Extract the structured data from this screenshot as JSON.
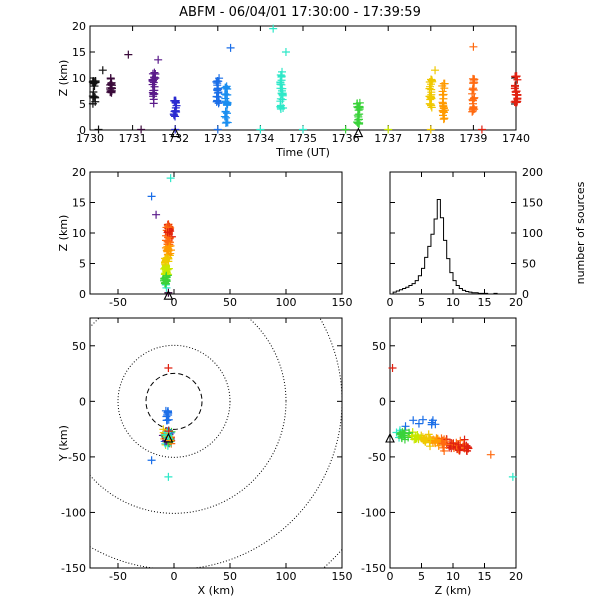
{
  "chart_data": [
    {
      "type": "scatter",
      "panel": "altitude-time",
      "title": "ABFM - 06/04/01 17:30:00 - 17:39:59",
      "xlabel": "Time (UT)",
      "ylabel": "Z (km)",
      "xlim": [
        1730,
        1740
      ],
      "ylim": [
        0,
        20
      ],
      "xticks": [
        "1730",
        "1731",
        "1732",
        "1733",
        "1734",
        "1735",
        "1736",
        "1737",
        "1738",
        "1739",
        "1740"
      ],
      "yticks": [
        "0",
        "5",
        "10",
        "15",
        "20"
      ],
      "clusters": [
        {
          "t": 1730.1,
          "z_min": 5.0,
          "z_max": 9.5,
          "color": "#111111"
        },
        {
          "t": 1730.5,
          "z_min": 7.0,
          "z_max": 10.0,
          "color": "#3a0a3a"
        },
        {
          "t": 1731.5,
          "z_min": 5.0,
          "z_max": 11.5,
          "color": "#5a1a8a"
        },
        {
          "t": 1732.0,
          "z_min": 2.5,
          "z_max": 6.0,
          "color": "#2a2ad0"
        },
        {
          "t": 1733.0,
          "z_min": 5.0,
          "z_max": 10.0,
          "color": "#1a6ee8"
        },
        {
          "t": 1733.2,
          "z_min": 1.0,
          "z_max": 9.0,
          "color": "#1a8ef0"
        },
        {
          "t": 1734.5,
          "z_min": 4.0,
          "z_max": 11.5,
          "color": "#2ee8c8"
        },
        {
          "t": 1736.3,
          "z_min": 1.0,
          "z_max": 5.5,
          "color": "#3ad23a"
        },
        {
          "t": 1738.0,
          "z_min": 4.0,
          "z_max": 10.0,
          "color": "#f0c800"
        },
        {
          "t": 1738.3,
          "z_min": 2.0,
          "z_max": 9.0,
          "color": "#ff9a00"
        },
        {
          "t": 1739.0,
          "z_min": 3.5,
          "z_max": 10.0,
          "color": "#ff6a10"
        },
        {
          "t": 1740.0,
          "z_min": 5.0,
          "z_max": 10.5,
          "color": "#e02010"
        }
      ],
      "outliers": [
        {
          "t": 1730.3,
          "z": 11.5,
          "color": "#111111"
        },
        {
          "t": 1730.9,
          "z": 14.5,
          "color": "#3a0a3a"
        },
        {
          "t": 1731.6,
          "z": 13.5,
          "color": "#5a1a8a"
        },
        {
          "t": 1733.3,
          "z": 15.8,
          "color": "#1a6ee8"
        },
        {
          "t": 1734.3,
          "z": 19.5,
          "color": "#2ee8c8"
        },
        {
          "t": 1734.6,
          "z": 15.0,
          "color": "#2ee8c8"
        },
        {
          "t": 1739.0,
          "z": 16.0,
          "color": "#ff6a10"
        },
        {
          "t": 1738.1,
          "z": 11.5,
          "color": "#f0c800"
        }
      ],
      "ground_markers": [
        {
          "t": 1730.2,
          "color": "#111111"
        },
        {
          "t": 1731.2,
          "color": "#3a0a3a"
        },
        {
          "t": 1732.0,
          "color": "#2a2ad0"
        },
        {
          "t": 1733.0,
          "color": "#1a6ee8"
        },
        {
          "t": 1734.0,
          "color": "#2ee8c8"
        },
        {
          "t": 1735.0,
          "color": "#2ee8c8"
        },
        {
          "t": 1736.0,
          "color": "#3ad23a"
        },
        {
          "t": 1737.0,
          "color": "#c8e800"
        },
        {
          "t": 1738.0,
          "color": "#f0c800"
        },
        {
          "t": 1739.2,
          "color": "#e02010"
        }
      ],
      "triangles": [
        {
          "t": 1732.0
        },
        {
          "t": 1736.3
        }
      ]
    },
    {
      "type": "scatter",
      "panel": "altitude-x",
      "ylabel": "Z (km)",
      "xlim": [
        -75,
        150
      ],
      "ylim": [
        0,
        20
      ],
      "xticks": [
        "-50",
        "0",
        "50",
        "100",
        "150"
      ],
      "yticks": [
        "0",
        "5",
        "10",
        "15",
        "20"
      ],
      "triangle": {
        "x": -5,
        "z": -0.2
      }
    },
    {
      "type": "line",
      "panel": "altitude-histogram",
      "xlabel": "",
      "ylabel": "number of sources",
      "xlim": [
        0,
        20
      ],
      "ylim": [
        0,
        200
      ],
      "xticks": [
        "0",
        "5",
        "10",
        "15",
        "20"
      ],
      "yticks": [
        "0",
        "50",
        "100",
        "150",
        "200"
      ],
      "bin_width": 0.5,
      "bin_start": 0,
      "counts": [
        0,
        3,
        5,
        7,
        9,
        11,
        14,
        17,
        22,
        30,
        42,
        60,
        78,
        98,
        123,
        155,
        125,
        88,
        58,
        35,
        22,
        14,
        9,
        6,
        4,
        3,
        2,
        2,
        1,
        1,
        1,
        0,
        0,
        1,
        0,
        0,
        0,
        0,
        0,
        0
      ]
    },
    {
      "type": "scatter",
      "panel": "plan-view",
      "xlabel": "X (km)",
      "ylabel": "Y (km)",
      "xlim": [
        -75,
        150
      ],
      "ylim": [
        -150,
        75
      ],
      "xticks": [
        "-50",
        "0",
        "50",
        "100",
        "150"
      ],
      "yticks": [
        "-150",
        "-100",
        "-50",
        "0",
        "50"
      ],
      "range_rings_km": [
        25,
        50,
        100,
        150,
        200
      ],
      "ring_center": [
        0,
        0
      ],
      "station_triangle": {
        "x": -5,
        "y": -33
      },
      "outliers": [
        {
          "x": -5,
          "y": 30,
          "color": "#e02010"
        },
        {
          "x": -5,
          "y": -68,
          "color": "#2ee8c8"
        },
        {
          "x": -20,
          "y": -53,
          "color": "#1a6ee8"
        }
      ]
    },
    {
      "type": "scatter",
      "panel": "altitude-y",
      "xlabel": "Z (km)",
      "xlim": [
        0,
        20
      ],
      "ylim": [
        -150,
        75
      ],
      "xticks": [
        "0",
        "5",
        "10",
        "15",
        "20"
      ],
      "yticks": [
        "-150",
        "-100",
        "-50",
        "0",
        "50"
      ],
      "station_triangle": {
        "z": 0,
        "y": -33
      },
      "outliers": [
        {
          "z": 0.4,
          "y": 30,
          "color": "#e02010"
        },
        {
          "z": 19.5,
          "y": -68,
          "color": "#2ee8c8"
        },
        {
          "z": 16.0,
          "y": -48,
          "color": "#ff6a10"
        }
      ]
    }
  ]
}
